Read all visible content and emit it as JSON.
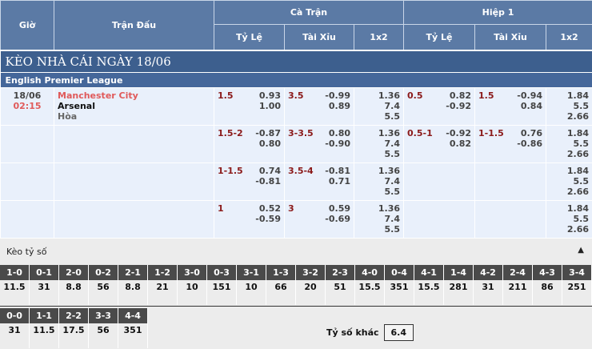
{
  "header": {
    "gio": "Giờ",
    "tran_dau": "Trận Đấu",
    "ca_tran": "Cà Trận",
    "hiep1": "Hiệp 1",
    "ty_le": "Tỷ Lệ",
    "tai_xiu": "Tài Xỉu",
    "x12": "1x2"
  },
  "title": "KÈO NHÀ CÁI NGÀY 18/06",
  "league": "English Premier League",
  "match": {
    "date": "18/06",
    "time": "02:15",
    "home": "Manchester City",
    "away": "Arsenal",
    "draw": "Hòa"
  },
  "rows": [
    {
      "hcp": "1.5",
      "hcp_o": [
        "0.93",
        "1.00"
      ],
      "ou": "3.5",
      "ou_o": [
        "-0.99",
        "0.89"
      ],
      "x12": [
        "1.36",
        "7.4",
        "5.5"
      ],
      "h_hcp": "0.5",
      "h_hcp_o": [
        "0.82",
        "-0.92"
      ],
      "h_ou": "1.5",
      "h_ou_o": [
        "-0.94",
        "0.84"
      ],
      "h_x12": [
        "1.84",
        "5.5",
        "2.66"
      ]
    },
    {
      "hcp": "1.5-2",
      "hcp_o": [
        "-0.87",
        "0.80"
      ],
      "ou": "3-3.5",
      "ou_o": [
        "0.80",
        "-0.90"
      ],
      "x12": [
        "1.36",
        "7.4",
        "5.5"
      ],
      "h_hcp": "0.5-1",
      "h_hcp_o": [
        "-0.92",
        "0.82"
      ],
      "h_ou": "1-1.5",
      "h_ou_o": [
        "0.76",
        "-0.86"
      ],
      "h_x12": [
        "1.84",
        "5.5",
        "2.66"
      ]
    },
    {
      "hcp": "1-1.5",
      "hcp_o": [
        "0.74",
        "-0.81"
      ],
      "ou": "3.5-4",
      "ou_o": [
        "-0.81",
        "0.71"
      ],
      "x12": [
        "1.36",
        "7.4",
        "5.5"
      ],
      "h_hcp": "",
      "h_hcp_o": [
        "",
        ""
      ],
      "h_ou": "",
      "h_ou_o": [
        "",
        ""
      ],
      "h_x12": [
        "1.84",
        "5.5",
        "2.66"
      ]
    },
    {
      "hcp": "1",
      "hcp_o": [
        "0.52",
        "-0.59"
      ],
      "ou": "3",
      "ou_o": [
        "0.59",
        "-0.69"
      ],
      "x12": [
        "1.36",
        "7.4",
        "5.5"
      ],
      "h_hcp": "",
      "h_hcp_o": [
        "",
        ""
      ],
      "h_ou": "",
      "h_ou_o": [
        "",
        ""
      ],
      "h_x12": [
        "1.84",
        "5.5",
        "2.66"
      ]
    }
  ],
  "keo_ty_so": {
    "title": "Kèo tỷ số",
    "collapse_icon": "triangle-up-icon",
    "row1": [
      [
        "1-0",
        "11.5"
      ],
      [
        "0-1",
        "31"
      ],
      [
        "2-0",
        "8.8"
      ],
      [
        "0-2",
        "56"
      ],
      [
        "2-1",
        "8.8"
      ],
      [
        "1-2",
        "21"
      ],
      [
        "3-0",
        "10"
      ],
      [
        "0-3",
        "151"
      ],
      [
        "3-1",
        "10"
      ],
      [
        "1-3",
        "66"
      ],
      [
        "3-2",
        "20"
      ],
      [
        "2-3",
        "51"
      ],
      [
        "4-0",
        "15.5"
      ],
      [
        "0-4",
        "351"
      ],
      [
        "4-1",
        "15.5"
      ],
      [
        "1-4",
        "281"
      ],
      [
        "4-2",
        "31"
      ],
      [
        "2-4",
        "211"
      ],
      [
        "4-3",
        "86"
      ],
      [
        "3-4",
        "251"
      ]
    ],
    "row2": [
      [
        "0-0",
        "31"
      ],
      [
        "1-1",
        "11.5"
      ],
      [
        "2-2",
        "17.5"
      ],
      [
        "3-3",
        "56"
      ],
      [
        "4-4",
        "351"
      ]
    ],
    "other_label": "Tỷ số khác",
    "other_value": "6.4"
  }
}
